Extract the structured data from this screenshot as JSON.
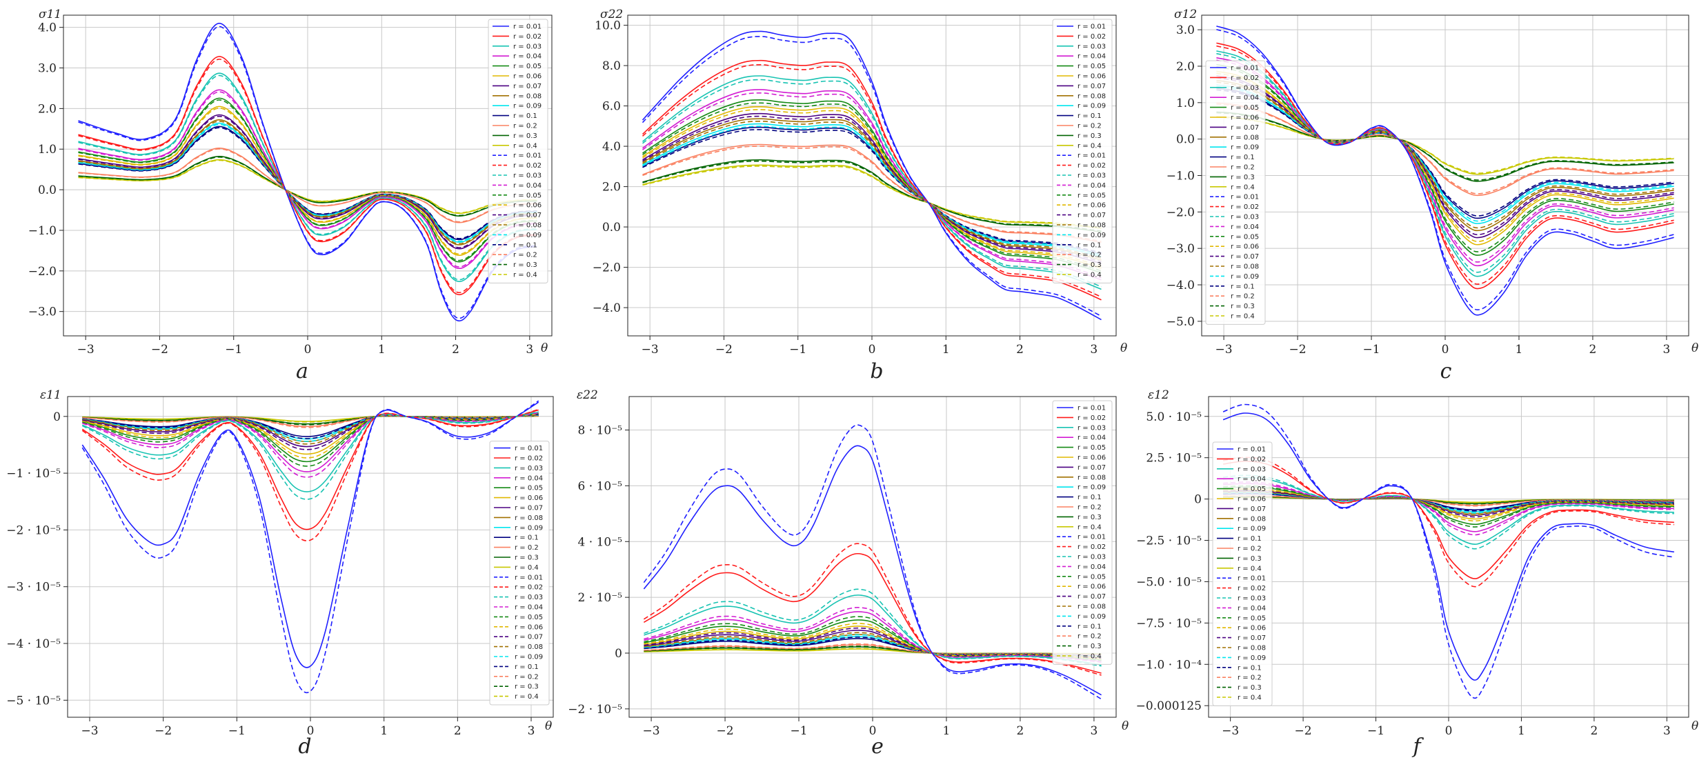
{
  "figure": {
    "x_unit": "θ",
    "legend_entry_prefix": "r = ",
    "legend_values": [
      "0.01",
      "0.02",
      "0.03",
      "0.04",
      "0.05",
      "0.06",
      "0.07",
      "0.08",
      "0.09",
      "0.1",
      "0.2",
      "0.3",
      "0.4"
    ],
    "series_colors": [
      "#1f1fff",
      "#ff1a1a",
      "#17c3b2",
      "#d21bd2",
      "#148a14",
      "#e0b800",
      "#4b0082",
      "#a07000",
      "#00e5ee",
      "#000080",
      "#fa8060",
      "#006400",
      "#c8c800"
    ]
  },
  "chart_data": [
    {
      "panel": "a",
      "type": "line",
      "ylabel": "σ11",
      "xlim": [
        -3.3,
        3.3
      ],
      "ylim": [
        -3.6,
        4.3
      ],
      "xticks": [
        "-3",
        "-2",
        "-1",
        "0",
        "1",
        "2",
        "3"
      ],
      "yticks": [
        {
          "v": 4.0,
          "label": "4.0"
        },
        {
          "v": 3.0,
          "label": "3.0"
        },
        {
          "v": 2.0,
          "label": "2.0"
        },
        {
          "v": 1.0,
          "label": "1.0"
        },
        {
          "v": 0.0,
          "label": "0.0"
        },
        {
          "v": -1.0,
          "label": "-1.0"
        },
        {
          "v": -2.0,
          "label": "-2.0"
        },
        {
          "v": -3.0,
          "label": "-3.0"
        }
      ],
      "legend_pos": "top-right",
      "x": [
        -3.1,
        -2.6,
        -2.2,
        -1.8,
        -1.5,
        -1.2,
        -0.9,
        -0.6,
        -0.3,
        0,
        0.2,
        0.5,
        0.8,
        1,
        1.3,
        1.6,
        1.8,
        2,
        2.2,
        2.5,
        2.8,
        3.1
      ],
      "base": [
        1.7,
        1.4,
        1.25,
        1.7,
        3.2,
        4.1,
        3.3,
        1.6,
        0,
        -1.3,
        -1.6,
        -1.3,
        -0.6,
        -0.3,
        -0.5,
        -1.3,
        -2.5,
        -3.2,
        -3.0,
        -2.0,
        -1.5,
        -1.4
      ],
      "scale": [
        1.0,
        0.8,
        0.7,
        0.6,
        0.55,
        0.5,
        0.45,
        0.42,
        0.4,
        0.38,
        0.25,
        0.2,
        0.18
      ],
      "dash_factor": 0.98
    },
    {
      "panel": "b",
      "type": "line",
      "ylabel": "σ22",
      "xlim": [
        -3.3,
        3.3
      ],
      "ylim": [
        -5.4,
        10.5
      ],
      "xticks": [
        "-3",
        "-2",
        "-1",
        "0",
        "1",
        "2",
        "3"
      ],
      "yticks": [
        {
          "v": 10.0,
          "label": "10.0"
        },
        {
          "v": 8.0,
          "label": "8.0"
        },
        {
          "v": 6.0,
          "label": "6.0"
        },
        {
          "v": 4.0,
          "label": "4.0"
        },
        {
          "v": 2.0,
          "label": "2.0"
        },
        {
          "v": 0.0,
          "label": "0.0"
        },
        {
          "v": -2.0,
          "label": "-2.0"
        },
        {
          "v": -4.0,
          "label": "-4.0"
        }
      ],
      "legend_pos": "top-right",
      "x": [
        -3.1,
        -2.6,
        -2.2,
        -1.8,
        -1.5,
        -1.2,
        -0.9,
        -0.6,
        -0.3,
        0,
        0.2,
        0.5,
        0.8,
        1,
        1.3,
        1.6,
        1.8,
        2,
        2.2,
        2.5,
        2.8,
        3.1
      ],
      "base": [
        5.3,
        7.3,
        8.6,
        9.5,
        9.7,
        9.5,
        9.4,
        9.6,
        9.3,
        7.2,
        5.0,
        2.6,
        1.0,
        -0.3,
        -1.7,
        -2.6,
        -3.1,
        -3.2,
        -3.3,
        -3.5,
        -4.0,
        -4.6
      ],
      "scale": [
        1.0,
        0.83,
        0.74,
        0.66,
        0.6,
        0.56,
        0.52,
        0.49,
        0.46,
        0.44,
        0.34,
        0.25,
        0.22
      ],
      "offset_point": 0.55,
      "offset_value": 1.2,
      "dash_factor": 0.97
    },
    {
      "panel": "c",
      "type": "line",
      "ylabel": "σ12",
      "xlim": [
        -3.3,
        3.3
      ],
      "ylim": [
        -5.4,
        3.4
      ],
      "xticks": [
        "-3",
        "-2",
        "-1",
        "0",
        "1",
        "2",
        "3"
      ],
      "yticks": [
        {
          "v": 3.0,
          "label": "3.0"
        },
        {
          "v": 2.0,
          "label": "2.0"
        },
        {
          "v": 1.0,
          "label": "1.0"
        },
        {
          "v": 0.0,
          "label": "0.0"
        },
        {
          "v": -1.0,
          "label": "-1.0"
        },
        {
          "v": -2.0,
          "label": "-2.0"
        },
        {
          "v": -3.0,
          "label": "-3.0"
        },
        {
          "v": -4.0,
          "label": "-4.0"
        },
        {
          "v": -5.0,
          "label": "-5.0"
        }
      ],
      "legend_pos": "top-left",
      "x": [
        -3.1,
        -2.8,
        -2.5,
        -2.2,
        -1.9,
        -1.6,
        -1.3,
        -1,
        -0.8,
        -0.5,
        -0.2,
        0,
        0.3,
        0.5,
        0.8,
        1.1,
        1.4,
        1.7,
        2,
        2.3,
        2.7,
        3.1
      ],
      "base": [
        3.1,
        2.9,
        2.4,
        1.6,
        0.6,
        -0.1,
        -0.1,
        0.3,
        0.3,
        -0.4,
        -2.0,
        -3.4,
        -4.6,
        -4.8,
        -4.2,
        -3.2,
        -2.6,
        -2.6,
        -2.8,
        -3.0,
        -2.9,
        -2.7
      ],
      "scale": [
        1.0,
        0.85,
        0.78,
        0.72,
        0.66,
        0.6,
        0.56,
        0.52,
        0.48,
        0.45,
        0.32,
        0.24,
        0.2
      ],
      "dash_factor": 0.97
    },
    {
      "panel": "d",
      "type": "line",
      "ylabel": "ε11",
      "xlim": [
        -3.3,
        3.3
      ],
      "ylim": [
        -5.3e-05,
        3.5e-06
      ],
      "xticks": [
        "-3",
        "-2",
        "-1",
        "0",
        "1",
        "2",
        "3"
      ],
      "yticks": [
        {
          "v": 0,
          "label": "0"
        },
        {
          "v": -1e-05,
          "label": "-1 · 10⁻⁵"
        },
        {
          "v": -2e-05,
          "label": "-2 · 10⁻⁵"
        },
        {
          "v": -3e-05,
          "label": "-3 · 10⁻⁵"
        },
        {
          "v": -4e-05,
          "label": "-4 · 10⁻⁵"
        },
        {
          "v": -5e-05,
          "label": "-5 · 10⁻⁵"
        }
      ],
      "legend_pos": "right",
      "x": [
        -3.1,
        -2.8,
        -2.5,
        -2.2,
        -2,
        -1.8,
        -1.5,
        -1.2,
        -1,
        -0.7,
        -0.4,
        -0.2,
        0,
        0.2,
        0.5,
        0.8,
        1,
        1.3,
        1.6,
        2,
        2.4,
        2.8,
        3.1
      ],
      "base": [
        -5e-06,
        -1.1e-05,
        -1.8e-05,
        -2.2e-05,
        -2.25e-05,
        -2e-05,
        -1e-05,
        -3e-06,
        -4e-06,
        -1.4e-05,
        -3.2e-05,
        -4.2e-05,
        -4.4e-05,
        -3.8e-05,
        -2e-05,
        -3e-06,
        1e-06,
        0.0,
        -1e-06,
        -3.5e-06,
        -3e-06,
        0.0,
        2.5e-06
      ],
      "scale": [
        1.0,
        0.45,
        0.3,
        0.22,
        0.18,
        0.15,
        0.12,
        0.1,
        0.09,
        0.08,
        0.04,
        0.03,
        0.02
      ],
      "dash_factor": 1.1
    },
    {
      "panel": "e",
      "type": "line",
      "ylabel": "ε22",
      "xlim": [
        -3.3,
        3.3
      ],
      "ylim": [
        -2.3e-05,
        9.2e-05
      ],
      "xticks": [
        "-3",
        "-2",
        "-1",
        "0",
        "1",
        "2",
        "3"
      ],
      "yticks": [
        {
          "v": 8e-05,
          "label": "8 · 10⁻⁵"
        },
        {
          "v": 6e-05,
          "label": "6 · 10⁻⁵"
        },
        {
          "v": 4e-05,
          "label": "4 · 10⁻⁵"
        },
        {
          "v": 2e-05,
          "label": "2 · 10⁻⁵"
        },
        {
          "v": 0,
          "label": "0"
        },
        {
          "v": -2e-05,
          "label": "-2 · 10⁻⁵"
        }
      ],
      "legend_pos": "top-right",
      "x": [
        -3.1,
        -2.8,
        -2.5,
        -2.2,
        -2,
        -1.8,
        -1.5,
        -1.2,
        -1,
        -0.8,
        -0.5,
        -0.3,
        -0.15,
        0,
        0.2,
        0.5,
        0.7,
        0.9,
        1.1,
        1.4,
        1.8,
        2.2,
        2.6,
        3.1
      ],
      "base": [
        2.3e-05,
        3.3e-05,
        4.6e-05,
        5.7e-05,
        6e-05,
        5.8e-05,
        4.8e-05,
        4e-05,
        3.9e-05,
        4.6e-05,
        6.5e-05,
        7.3e-05,
        7.4e-05,
        6.9e-05,
        5e-05,
        2e-05,
        5e-06,
        -3e-06,
        -6.5e-06,
        -6e-06,
        -4e-06,
        -4.5e-06,
        -8e-06,
        -1.5e-05
      ],
      "scale": [
        1.0,
        0.48,
        0.28,
        0.2,
        0.16,
        0.13,
        0.11,
        0.09,
        0.08,
        0.07,
        0.04,
        0.03,
        0.02
      ],
      "dash_factor": 1.1
    },
    {
      "panel": "f",
      "type": "line",
      "ylabel": "ε12",
      "xlim": [
        -3.3,
        3.3
      ],
      "ylim": [
        -0.000132,
        6.2e-05
      ],
      "xticks": [
        "-3",
        "-2",
        "-1",
        "0",
        "1",
        "2",
        "3"
      ],
      "yticks": [
        {
          "v": 5e-05,
          "label": "5.0 · 10⁻⁵"
        },
        {
          "v": 2.5e-05,
          "label": "2.5 · 10⁻⁵"
        },
        {
          "v": 0,
          "label": "0"
        },
        {
          "v": -2.5e-05,
          "label": "-2.5 · 10⁻⁵"
        },
        {
          "v": -5e-05,
          "label": "-5.0 · 10⁻⁵"
        },
        {
          "v": -7.5e-05,
          "label": "-7.5 · 10⁻⁵"
        },
        {
          "v": -0.0001,
          "label": "-1.0 · 10⁻⁴"
        },
        {
          "v": -0.000125,
          "label": "-0.000125"
        }
      ],
      "legend_pos": "top-left",
      "x": [
        -3.1,
        -2.8,
        -2.5,
        -2.2,
        -1.9,
        -1.6,
        -1.4,
        -1.1,
        -0.8,
        -0.5,
        -0.2,
        0,
        0.3,
        0.5,
        0.8,
        1.1,
        1.4,
        1.7,
        2,
        2.3,
        2.7,
        3.1
      ],
      "base": [
        4.8e-05,
        5.2e-05,
        4.8e-05,
        3.3e-05,
        1.2e-05,
        -2e-06,
        -5e-06,
        2e-06,
        8e-06,
        0.0,
        -4e-05,
        -8e-05,
        -0.000108,
        -0.000102,
        -7e-05,
        -3.5e-05,
        -1.8e-05,
        -1.5e-05,
        -1.6e-05,
        -2.2e-05,
        -2.9e-05,
        -3.2e-05
      ],
      "scale": [
        1.0,
        0.44,
        0.25,
        0.18,
        0.14,
        0.11,
        0.09,
        0.08,
        0.07,
        0.06,
        0.035,
        0.025,
        0.018
      ],
      "dash_factor": 1.1
    }
  ]
}
